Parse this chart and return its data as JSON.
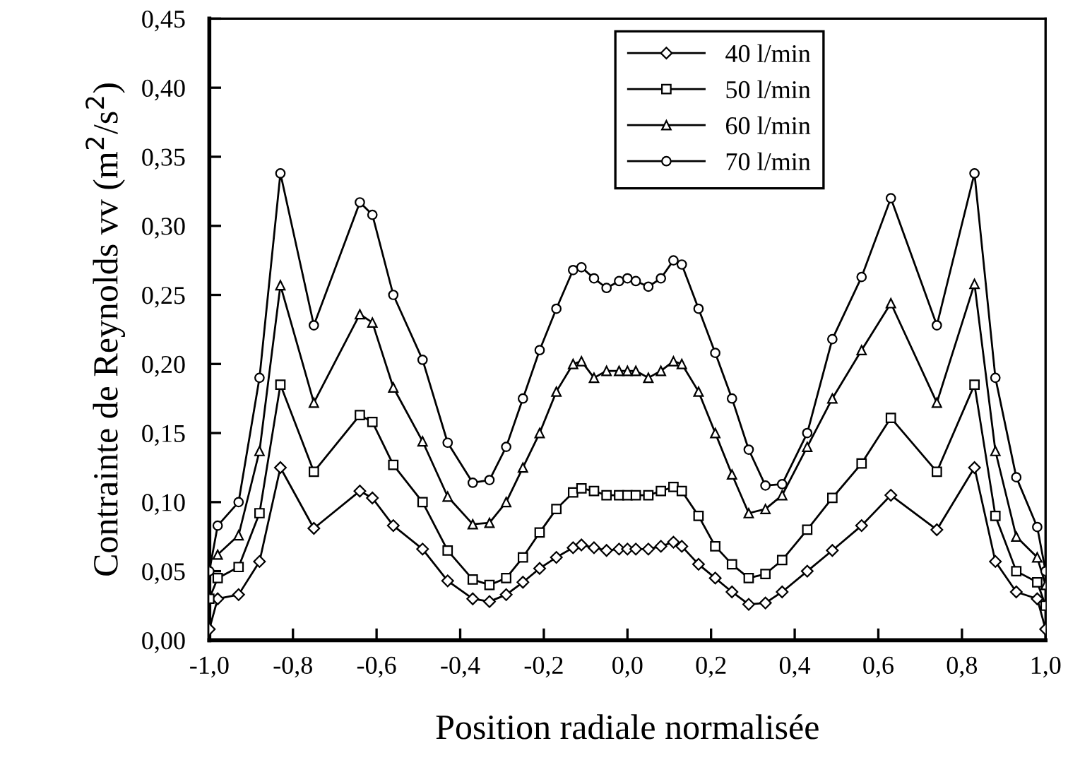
{
  "chart_data": {
    "type": "line",
    "xlabel": "Position radiale normalisée",
    "ylabel": "Contrainte de Reynolds vv (m$^{2}$/s$^{2}$)",
    "x": [
      -1.0,
      -0.98,
      -0.93,
      -0.88,
      -0.83,
      -0.75,
      -0.64,
      -0.61,
      -0.56,
      -0.49,
      -0.43,
      -0.37,
      -0.33,
      -0.29,
      -0.25,
      -0.21,
      -0.17,
      -0.13,
      -0.11,
      -0.08,
      -0.05,
      -0.02,
      0,
      0.02,
      0.05,
      0.08,
      0.11,
      0.13,
      0.17,
      0.21,
      0.25,
      0.29,
      0.33,
      0.37,
      0.43,
      0.49,
      0.56,
      0.63,
      0.74,
      0.83,
      0.88,
      0.93,
      0.98,
      1.0
    ],
    "series": [
      {
        "name": "40 l/min",
        "color": "#000000",
        "marker": "diamond",
        "values": [
          0.008,
          0.03,
          0.033,
          0.057,
          0.125,
          0.081,
          0.108,
          0.103,
          0.083,
          0.066,
          0.043,
          0.03,
          0.028,
          0.033,
          0.042,
          0.052,
          0.06,
          0.067,
          0.069,
          0.067,
          0.065,
          0.066,
          0.066,
          0.066,
          0.066,
          0.068,
          0.071,
          0.068,
          0.055,
          0.045,
          0.035,
          0.026,
          0.027,
          0.035,
          0.05,
          0.065,
          0.083,
          0.105,
          0.08,
          0.125,
          0.057,
          0.035,
          0.03,
          0.008
        ]
      },
      {
        "name": "50 l/min",
        "color": "#000000",
        "marker": "square",
        "values": [
          0.03,
          0.045,
          0.053,
          0.092,
          0.185,
          0.122,
          0.163,
          0.158,
          0.127,
          0.1,
          0.065,
          0.044,
          0.04,
          0.045,
          0.06,
          0.078,
          0.095,
          0.107,
          0.11,
          0.108,
          0.105,
          0.105,
          0.105,
          0.105,
          0.105,
          0.108,
          0.111,
          0.108,
          0.09,
          0.068,
          0.055,
          0.045,
          0.048,
          0.058,
          0.08,
          0.103,
          0.128,
          0.161,
          0.122,
          0.185,
          0.09,
          0.05,
          0.042,
          0.025
        ]
      },
      {
        "name": "60 l/min",
        "color": "#000000",
        "marker": "triangle",
        "values": [
          null,
          0.062,
          0.076,
          0.137,
          0.257,
          0.172,
          0.236,
          0.23,
          0.183,
          0.144,
          0.104,
          0.084,
          0.085,
          0.1,
          0.125,
          0.15,
          0.18,
          0.2,
          0.202,
          0.19,
          0.195,
          0.195,
          0.195,
          0.195,
          0.19,
          0.195,
          0.202,
          0.2,
          0.18,
          0.15,
          0.12,
          0.092,
          0.095,
          0.105,
          0.14,
          0.175,
          0.21,
          0.244,
          0.172,
          0.258,
          0.137,
          0.075,
          0.06,
          0.04
        ]
      },
      {
        "name": "70 l/min",
        "color": "#000000",
        "marker": "circle",
        "values": [
          0.05,
          0.083,
          0.1,
          0.19,
          0.338,
          0.228,
          0.317,
          0.308,
          0.25,
          0.203,
          0.143,
          0.114,
          0.116,
          0.14,
          0.175,
          0.21,
          0.24,
          0.268,
          0.27,
          0.262,
          0.255,
          0.26,
          0.262,
          0.26,
          0.256,
          0.262,
          0.275,
          0.272,
          0.24,
          0.208,
          0.175,
          0.138,
          0.112,
          0.113,
          0.15,
          0.218,
          0.263,
          0.32,
          0.228,
          0.338,
          0.19,
          0.118,
          0.082,
          0.05
        ]
      }
    ],
    "xlim": [
      -1.0,
      1.0
    ],
    "xticks": [
      {
        "value": -1.0,
        "label": "-1,0"
      },
      {
        "value": -0.8,
        "label": "-0,8"
      },
      {
        "value": -0.6,
        "label": "-0,6"
      },
      {
        "value": -0.4,
        "label": "-0,4"
      },
      {
        "value": -0.2,
        "label": "-0,2"
      },
      {
        "value": 0.0,
        "label": "0,0"
      },
      {
        "value": 0.2,
        "label": "0,2"
      },
      {
        "value": 0.4,
        "label": "0,4"
      },
      {
        "value": 0.6,
        "label": "0,6"
      },
      {
        "value": 0.8,
        "label": "0,8"
      },
      {
        "value": 1.0,
        "label": "1,0"
      }
    ],
    "ylim": [
      0,
      0.45
    ],
    "yticks": [
      {
        "value": 0,
        "label": "0,00"
      },
      {
        "value": 0.05,
        "label": "0,05"
      },
      {
        "value": 0.1,
        "label": "0,10"
      },
      {
        "value": 0.15,
        "label": "0,15"
      },
      {
        "value": 0.2,
        "label": "0,20"
      },
      {
        "value": 0.25,
        "label": "0,25"
      },
      {
        "value": 0.3,
        "label": "0,30"
      },
      {
        "value": 0.35,
        "label": "0,35"
      },
      {
        "value": 0.4,
        "label": "0,40"
      },
      {
        "value": 0.45,
        "label": "0,45"
      }
    ],
    "legend": "top",
    "line_style": "solid",
    "grid": false
  }
}
